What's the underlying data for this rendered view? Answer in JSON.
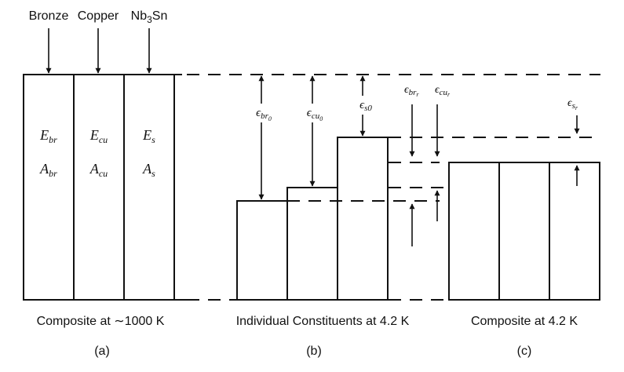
{
  "top_labels": {
    "bronze": "Bronze",
    "copper": "Copper",
    "nb3sn_main": "Nb",
    "nb3sn_sub": "3",
    "nb3sn_tail": "Sn"
  },
  "panel_a": {
    "modulus": [
      {
        "symbol": "E",
        "sub": "br"
      },
      {
        "symbol": "E",
        "sub": "cu"
      },
      {
        "symbol": "E",
        "sub": "s"
      }
    ],
    "area": [
      {
        "symbol": "A",
        "sub": "br"
      },
      {
        "symbol": "A",
        "sub": "cu"
      },
      {
        "symbol": "A",
        "sub": "s"
      }
    ],
    "caption": "Composite at ∼1000 K",
    "tag": "(a)"
  },
  "panel_b": {
    "strains": [
      {
        "symbol": "ϵ",
        "sub": "br",
        "subsub": "0"
      },
      {
        "symbol": "ϵ",
        "sub": "cu",
        "subsub": "0"
      },
      {
        "symbol": "ϵ",
        "sub": "s0",
        "subsub": ""
      }
    ],
    "caption": "Individual Constituents at 4.2 K",
    "tag": "(b)"
  },
  "panel_c": {
    "strains": [
      {
        "symbol": "ϵ",
        "sub": "br",
        "subsub": "r"
      },
      {
        "symbol": "ϵ",
        "sub": "cu",
        "subsub": "r"
      },
      {
        "symbol": "ϵ",
        "sub": "s",
        "subsub": "r"
      }
    ],
    "caption": "Composite at 4.2 K",
    "tag": "(c)"
  }
}
